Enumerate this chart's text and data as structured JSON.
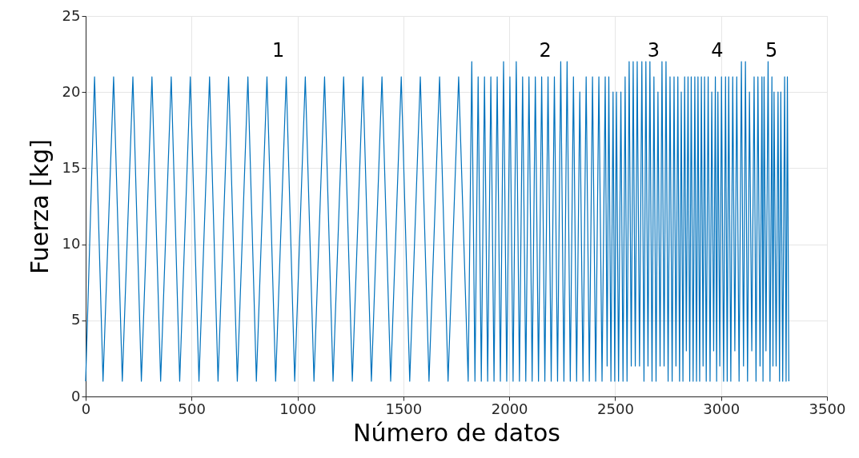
{
  "chart_data": {
    "type": "line",
    "xlabel": "Número de datos",
    "ylabel": "Fuerza [kg]",
    "xlim": [
      0,
      3500
    ],
    "xticks": [
      0,
      500,
      1000,
      1500,
      2000,
      2500,
      3000,
      3500
    ],
    "ylim": [
      0,
      25
    ],
    "yticks": [
      0,
      5,
      10,
      15,
      20,
      25
    ],
    "grid": true,
    "marker": "none",
    "line_style": "solid",
    "annotations": [
      "1",
      "2",
      "3",
      "4",
      "5"
    ],
    "series": [
      {
        "color": "#0072bd",
        "x": [
          0,
          42,
          82,
          132,
          173,
          223,
          263,
          313,
          354,
          404,
          444,
          494,
          535,
          585,
          625,
          675,
          716,
          766,
          806,
          856,
          897,
          947,
          987,
          1037,
          1078,
          1128,
          1168,
          1218,
          1259,
          1309,
          1349,
          1399,
          1440,
          1490,
          1530,
          1580,
          1621,
          1671,
          1711,
          1761,
          1806,
          1823,
          1838,
          1853,
          1868,
          1883,
          1898,
          1913,
          1928,
          1943,
          1958,
          1973,
          1988,
          2003,
          2018,
          2033,
          2048,
          2063,
          2078,
          2093,
          2108,
          2123,
          2138,
          2153,
          2168,
          2183,
          2198,
          2213,
          2228,
          2243,
          2258,
          2273,
          2288,
          2303,
          2318,
          2333,
          2348,
          2363,
          2378,
          2393,
          2408,
          2423,
          2438,
          2453,
          2462,
          2470,
          2480,
          2490,
          2498,
          2506,
          2516,
          2527,
          2537,
          2547,
          2556,
          2566,
          2576,
          2585,
          2595,
          2604,
          2615,
          2626,
          2636,
          2645,
          2655,
          2664,
          2674,
          2683,
          2693,
          2702,
          2712,
          2721,
          2731,
          2740,
          2750,
          2759,
          2769,
          2778,
          2787,
          2796,
          2804,
          2812,
          2820,
          2828,
          2836,
          2844,
          2852,
          2859,
          2868,
          2876,
          2884,
          2891,
          2899,
          2907,
          2915,
          2922,
          2930,
          2939,
          2948,
          2956,
          2965,
          2973,
          2979,
          2985,
          2994,
          3002,
          3012,
          3021,
          3029,
          3036,
          3046,
          3055,
          3065,
          3074,
          3085,
          3096,
          3106,
          3115,
          3125,
          3134,
          3145,
          3156,
          3165,
          3174,
          3184,
          3193,
          3198,
          3203,
          3212,
          3222,
          3231,
          3240,
          3245,
          3250,
          3260,
          3269,
          3276,
          3282,
          3291,
          3300,
          3307,
          3313,
          3320
        ],
        "values": [
          1,
          21,
          1,
          21,
          1,
          21,
          1,
          21,
          1,
          21,
          1,
          21,
          1,
          21,
          1,
          21,
          1,
          21,
          1,
          21,
          1,
          21,
          1,
          21,
          1,
          21,
          1,
          21,
          1,
          21,
          1,
          21,
          1,
          21,
          1,
          21,
          1,
          21,
          1,
          21,
          1,
          22,
          1,
          21,
          1,
          21,
          1,
          21,
          1,
          21,
          1,
          22,
          1,
          21,
          1,
          22,
          1,
          21,
          1,
          21,
          1,
          21,
          1,
          21,
          1,
          21,
          1,
          21,
          1,
          22,
          1,
          22,
          1,
          21,
          1,
          20,
          1,
          21,
          1,
          21,
          1,
          21,
          1,
          21,
          2,
          21,
          1,
          20,
          1,
          20,
          1,
          20,
          1,
          21,
          1,
          22,
          2,
          22,
          2,
          22,
          2,
          22,
          1,
          22,
          2,
          22,
          1,
          21,
          1,
          20,
          2,
          22,
          2,
          22,
          1,
          21,
          1,
          21,
          2,
          21,
          1,
          20,
          1,
          21,
          3,
          21,
          1,
          21,
          1,
          21,
          1,
          21,
          1,
          21,
          2,
          21,
          1,
          21,
          1,
          20,
          3,
          21,
          1,
          20,
          2,
          21,
          1,
          21,
          1,
          21,
          1,
          21,
          3,
          21,
          1,
          22,
          2,
          22,
          1,
          20,
          3,
          21,
          1,
          21,
          2,
          21,
          1,
          21,
          3,
          22,
          1,
          21,
          2,
          20,
          2,
          20,
          1,
          20,
          1,
          21,
          1,
          21,
          1
        ]
      }
    ]
  }
}
